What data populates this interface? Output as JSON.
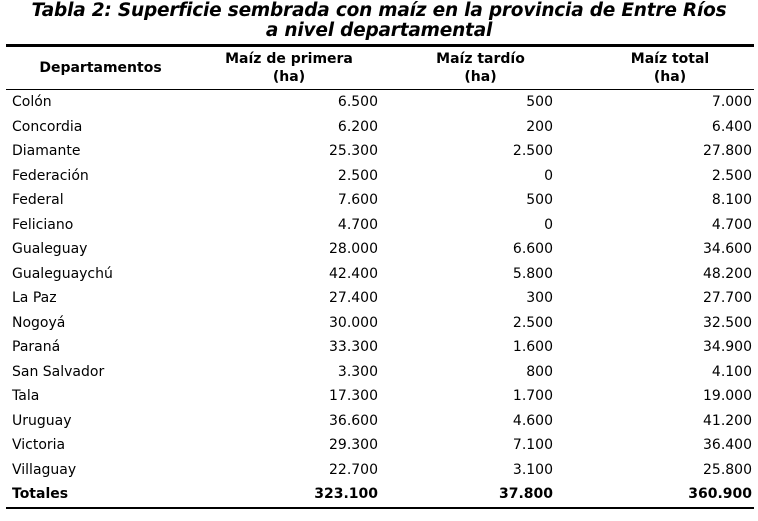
{
  "title": {
    "line1": "Tabla 2: Superficie sembrada con maíz en la provincia de Entre Ríos",
    "line2": "a nivel departamental"
  },
  "table": {
    "columns": [
      {
        "label": "Departamentos",
        "unit": ""
      },
      {
        "label": "Maíz de primera",
        "unit": "(ha)"
      },
      {
        "label": "Maíz tardío",
        "unit": "(ha)"
      },
      {
        "label": "Maíz total",
        "unit": "(ha)"
      }
    ],
    "rows": [
      {
        "departamento": "Colón",
        "primera": "6.500",
        "tardio": "500",
        "total": "7.000"
      },
      {
        "departamento": "Concordia",
        "primera": "6.200",
        "tardio": "200",
        "total": "6.400"
      },
      {
        "departamento": "Diamante",
        "primera": "25.300",
        "tardio": "2.500",
        "total": "27.800"
      },
      {
        "departamento": "Federación",
        "primera": "2.500",
        "tardio": "0",
        "total": "2.500"
      },
      {
        "departamento": "Federal",
        "primera": "7.600",
        "tardio": "500",
        "total": "8.100"
      },
      {
        "departamento": "Feliciano",
        "primera": "4.700",
        "tardio": "0",
        "total": "4.700"
      },
      {
        "departamento": "Gualeguay",
        "primera": "28.000",
        "tardio": "6.600",
        "total": "34.600"
      },
      {
        "departamento": "Gualeguaychú",
        "primera": "42.400",
        "tardio": "5.800",
        "total": "48.200"
      },
      {
        "departamento": "La Paz",
        "primera": "27.400",
        "tardio": "300",
        "total": "27.700"
      },
      {
        "departamento": "Nogoyá",
        "primera": "30.000",
        "tardio": "2.500",
        "total": "32.500"
      },
      {
        "departamento": "Paraná",
        "primera": "33.300",
        "tardio": "1.600",
        "total": "34.900"
      },
      {
        "departamento": "San Salvador",
        "primera": "3.300",
        "tardio": "800",
        "total": "4.100"
      },
      {
        "departamento": "Tala",
        "primera": "17.300",
        "tardio": "1.700",
        "total": "19.000"
      },
      {
        "departamento": "Uruguay",
        "primera": "36.600",
        "tardio": "4.600",
        "total": "41.200"
      },
      {
        "departamento": "Victoria",
        "primera": "29.300",
        "tardio": "7.100",
        "total": "36.400"
      },
      {
        "departamento": "Villaguay",
        "primera": "22.700",
        "tardio": "3.100",
        "total": "25.800"
      }
    ],
    "totals": {
      "departamento": "Totales",
      "primera": "323.100",
      "tardio": "37.800",
      "total": "360.900"
    }
  },
  "colors": {
    "text": "#000000",
    "rule": "#000000",
    "background": "#ffffff"
  }
}
